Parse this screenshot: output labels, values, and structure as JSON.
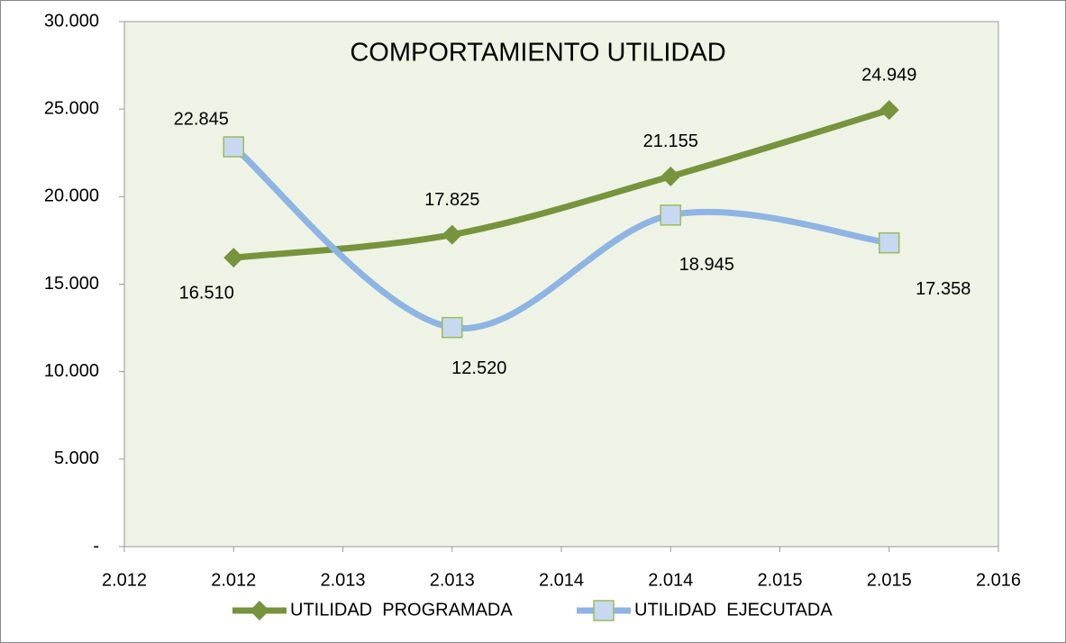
{
  "chart_data": {
    "type": "line",
    "title": "COMPORTAMIENTO UTILIDAD",
    "x": [
      2012,
      2013,
      2014,
      2015
    ],
    "series": [
      {
        "name": "UTILIDAD  PROGRAMADA",
        "color": "#77933c",
        "marker": "diamond",
        "values": [
          16510,
          17825,
          21155,
          24949
        ],
        "value_labels": [
          "16.510",
          "17.825",
          "21.155",
          "24.949"
        ]
      },
      {
        "name": "UTILIDAD  EJECUTADA",
        "color": "#8eb4e3",
        "marker": "square",
        "values": [
          22845,
          12520,
          18945,
          17358
        ],
        "value_labels": [
          "22.845",
          "12.520",
          "18.945",
          "17.358"
        ]
      }
    ],
    "smooth": true,
    "xlim": [
      2011.5,
      2015.5
    ],
    "xticks": [
      {
        "value": 2011.5,
        "label": "2.012"
      },
      {
        "value": 2012,
        "label": "2.012"
      },
      {
        "value": 2012.5,
        "label": "2.013"
      },
      {
        "value": 2013,
        "label": "2.013"
      },
      {
        "value": 2013.5,
        "label": "2.014"
      },
      {
        "value": 2014,
        "label": "2.014"
      },
      {
        "value": 2014.5,
        "label": "2.015"
      },
      {
        "value": 2015,
        "label": "2.015"
      },
      {
        "value": 2015.5,
        "label": "2.016"
      }
    ],
    "ylim": [
      0,
      30000
    ],
    "yticks": [
      {
        "value": 0,
        "label": "-"
      },
      {
        "value": 5000,
        "label": "5.000"
      },
      {
        "value": 10000,
        "label": "10.000"
      },
      {
        "value": 15000,
        "label": "15.000"
      },
      {
        "value": 20000,
        "label": "20.000"
      },
      {
        "value": 25000,
        "label": "25.000"
      },
      {
        "value": 30000,
        "label": "30.000"
      }
    ]
  }
}
